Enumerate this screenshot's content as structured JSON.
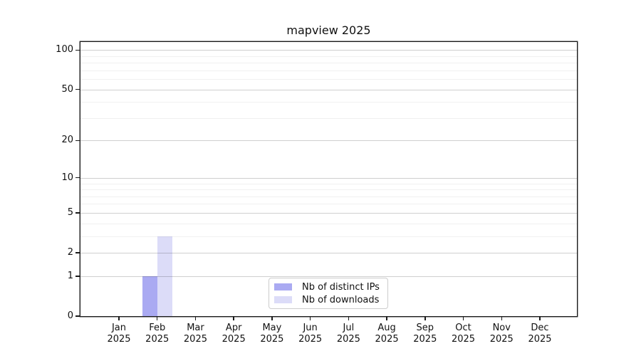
{
  "chart_data": {
    "type": "bar",
    "title": "mapview 2025",
    "categories": [
      "Jan 2025",
      "Feb 2025",
      "Mar 2025",
      "Apr 2025",
      "May 2025",
      "Jun 2025",
      "Jul 2025",
      "Aug 2025",
      "Sep 2025",
      "Oct 2025",
      "Nov 2025",
      "Dec 2025"
    ],
    "series": [
      {
        "name": "Nb of distinct IPs",
        "color": "#aaaaf2",
        "values": [
          0,
          1,
          0,
          0,
          0,
          0,
          0,
          0,
          0,
          0,
          0,
          0
        ]
      },
      {
        "name": "Nb of downloads",
        "color": "#dcdcf8",
        "values": [
          0,
          3,
          0,
          0,
          0,
          0,
          0,
          0,
          0,
          0,
          0,
          0
        ]
      }
    ],
    "yscale": "log1p",
    "ylim": [
      0,
      115
    ],
    "yticks": [
      0,
      1,
      2,
      5,
      10,
      20,
      50,
      100
    ],
    "minor_yticks": [
      3,
      4,
      6,
      7,
      8,
      9,
      30,
      40,
      60,
      70,
      80,
      90
    ],
    "xlabel": "",
    "ylabel": "",
    "grid": "horizontal",
    "legend_position": "lower center",
    "colors": {
      "axis": "#1a1a1a",
      "major_grid": "#cfcfcf",
      "minor_grid": "#efefef",
      "background": "#ffffff"
    }
  }
}
